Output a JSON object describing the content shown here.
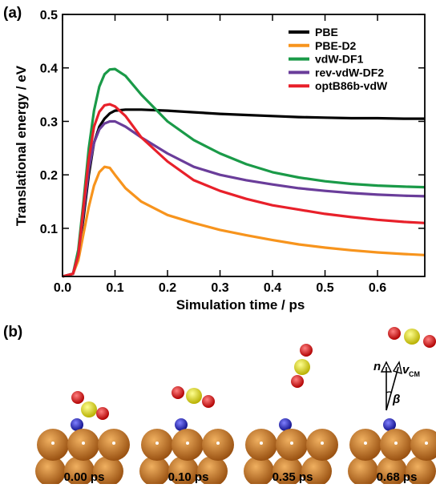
{
  "chart_data": {
    "type": "line",
    "panel_label": "(a)",
    "x_label": "Simulation time / ps",
    "y_label": "Translational energy / eV",
    "x": [
      0,
      0.02,
      0.03,
      0.04,
      0.05,
      0.06,
      0.07,
      0.08,
      0.09,
      0.1,
      0.12,
      0.15,
      0.2,
      0.25,
      0.3,
      0.35,
      0.4,
      0.45,
      0.5,
      0.55,
      0.6,
      0.65,
      0.69
    ],
    "series": [
      {
        "name": "PBE",
        "color": "#000000",
        "values": [
          0.01,
          0.015,
          0.05,
          0.12,
          0.2,
          0.26,
          0.29,
          0.305,
          0.315,
          0.32,
          0.322,
          0.322,
          0.32,
          0.317,
          0.314,
          0.312,
          0.31,
          0.308,
          0.307,
          0.306,
          0.306,
          0.305,
          0.305
        ]
      },
      {
        "name": "PBE-D2",
        "color": "#f7941d",
        "values": [
          0.01,
          0.015,
          0.04,
          0.09,
          0.14,
          0.18,
          0.205,
          0.215,
          0.213,
          0.2,
          0.175,
          0.15,
          0.125,
          0.11,
          0.097,
          0.087,
          0.078,
          0.07,
          0.064,
          0.059,
          0.055,
          0.052,
          0.05
        ]
      },
      {
        "name": "vdW-DF1",
        "color": "#1a9a48",
        "values": [
          0.01,
          0.015,
          0.06,
          0.15,
          0.25,
          0.32,
          0.365,
          0.388,
          0.397,
          0.398,
          0.385,
          0.35,
          0.3,
          0.265,
          0.24,
          0.22,
          0.205,
          0.195,
          0.188,
          0.183,
          0.18,
          0.178,
          0.177
        ]
      },
      {
        "name": "rev-vdW-DF2",
        "color": "#6a3d9a",
        "values": [
          0.01,
          0.015,
          0.05,
          0.13,
          0.21,
          0.26,
          0.285,
          0.296,
          0.3,
          0.3,
          0.29,
          0.27,
          0.24,
          0.215,
          0.2,
          0.19,
          0.182,
          0.175,
          0.17,
          0.166,
          0.163,
          0.161,
          0.16
        ]
      },
      {
        "name": "optB86b-vdW",
        "color": "#e8202a",
        "values": [
          0.01,
          0.015,
          0.05,
          0.14,
          0.23,
          0.29,
          0.318,
          0.33,
          0.332,
          0.328,
          0.31,
          0.27,
          0.225,
          0.19,
          0.17,
          0.155,
          0.143,
          0.135,
          0.127,
          0.121,
          0.116,
          0.112,
          0.11
        ]
      }
    ],
    "xlim": [
      0,
      0.69
    ],
    "ylim": [
      0.01,
      0.5
    ],
    "xticks": [
      {
        "value": 0,
        "label": "0.0"
      },
      0.1,
      0.2,
      0.3,
      0.4,
      0.5,
      0.6
    ],
    "yticks": [
      0.1,
      0.2,
      0.3,
      0.4,
      0.5
    ],
    "legend": "upper right"
  },
  "panel_b": {
    "panel_label": "(b)",
    "snapshots": [
      "0.00 ps",
      "0.10 ps",
      "0.35 ps",
      "0.68 ps"
    ],
    "normal_label": "n",
    "velocity_label": "v",
    "velocity_subscript": "CM",
    "angle_label": "β"
  }
}
